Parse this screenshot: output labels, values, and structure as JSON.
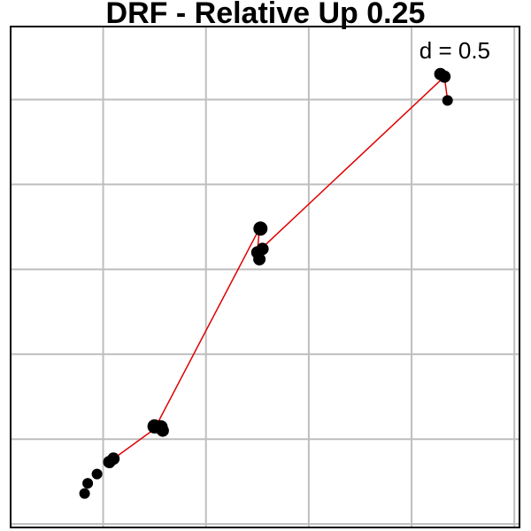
{
  "chart_data": {
    "type": "scatter",
    "title": "DRF -  Relative  Up  0.25",
    "annotation": "d = 0.5",
    "xlabel": "",
    "ylabel": "",
    "xlim": [
      -0.9,
      4.05
    ],
    "ylim": [
      -0.04,
      5.86
    ],
    "grid": true,
    "x_gridlines": [
      0,
      1,
      2,
      3,
      4
    ],
    "y_gridlines": [
      0,
      1,
      2,
      3,
      4,
      5
    ],
    "colors": {
      "points": "#000000",
      "line": "#e00000",
      "grid": "#bebebe",
      "frame": "#000000"
    },
    "points": [
      {
        "x": -0.18,
        "y": 0.36,
        "size": 6
      },
      {
        "x": -0.15,
        "y": 0.48,
        "size": 6
      },
      {
        "x": -0.06,
        "y": 0.59,
        "size": 6
      },
      {
        "x": 0.06,
        "y": 0.73,
        "size": 7
      },
      {
        "x": 0.1,
        "y": 0.77,
        "size": 7
      },
      {
        "x": 0.5,
        "y": 1.15,
        "size": 8
      },
      {
        "x": 0.56,
        "y": 1.14,
        "size": 8
      },
      {
        "x": 0.58,
        "y": 1.1,
        "size": 7
      },
      {
        "x": 1.53,
        "y": 3.48,
        "size": 8
      },
      {
        "x": 1.55,
        "y": 3.24,
        "size": 7
      },
      {
        "x": 1.5,
        "y": 3.2,
        "size": 7
      },
      {
        "x": 1.52,
        "y": 3.12,
        "size": 7
      },
      {
        "x": 3.28,
        "y": 5.3,
        "size": 7
      },
      {
        "x": 3.32,
        "y": 5.27,
        "size": 7
      },
      {
        "x": 3.35,
        "y": 4.99,
        "size": 6
      }
    ],
    "line": [
      {
        "x": 0.08,
        "y": 0.75
      },
      {
        "x": 0.5,
        "y": 1.12
      },
      {
        "x": 1.52,
        "y": 3.48
      },
      {
        "x": 1.5,
        "y": 3.2
      },
      {
        "x": 3.32,
        "y": 5.27
      },
      {
        "x": 3.35,
        "y": 4.99
      }
    ]
  }
}
